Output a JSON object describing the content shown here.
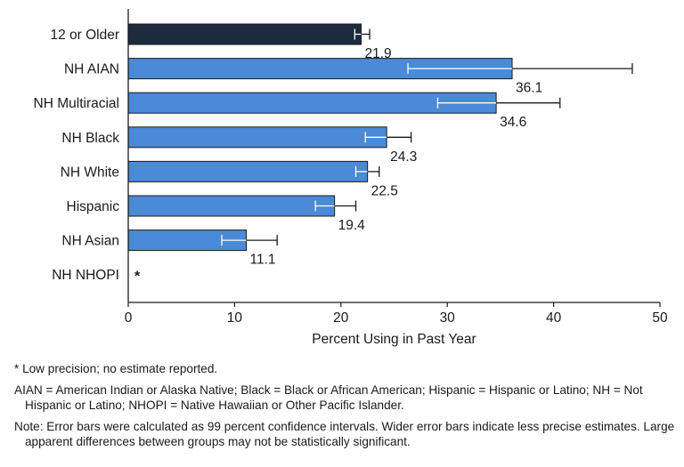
{
  "chart_data": {
    "type": "bar",
    "orientation": "horizontal",
    "categories": [
      "12 or Older",
      "NH AIAN",
      "NH Multiracial",
      "NH Black",
      "NH White",
      "Hispanic",
      "NH Asian",
      "NH NHOPI"
    ],
    "values": [
      21.9,
      36.1,
      34.6,
      24.3,
      22.5,
      19.4,
      11.1,
      null
    ],
    "value_labels": [
      "21.9",
      "36.1",
      "34.6",
      "24.3",
      "22.5",
      "19.4",
      "11.1",
      "*"
    ],
    "ci_low": [
      21.3,
      26.3,
      29.1,
      22.3,
      21.4,
      17.6,
      8.8,
      null
    ],
    "ci_high": [
      22.7,
      47.4,
      40.6,
      26.6,
      23.6,
      21.4,
      14.0,
      null
    ],
    "colors": [
      "#1c2b3f",
      "#4a8ad6",
      "#4a8ad6",
      "#4a8ad6",
      "#4a8ad6",
      "#4a8ad6",
      "#4a8ad6",
      "#4a8ad6"
    ],
    "xlim": [
      0,
      50
    ],
    "xticks": [
      0,
      10,
      20,
      30,
      40,
      50
    ],
    "xlabel": "Percent Using in Past Year",
    "ylabel": "",
    "grid": false
  },
  "notes": {
    "low_precision": "* Low precision; no estimate reported.",
    "abbreviations": "AIAN = American Indian or Alaska Native; Black = Black or African American; Hispanic = Hispanic or Latino; NH = Not Hispanic or Latino; NHOPI = Native Hawaiian or Other Pacific Islander.",
    "error_bars": "Note: Error bars were calculated as 99 percent confidence intervals. Wider error bars indicate less precise estimates. Large apparent differences between groups may not be statistically significant."
  }
}
